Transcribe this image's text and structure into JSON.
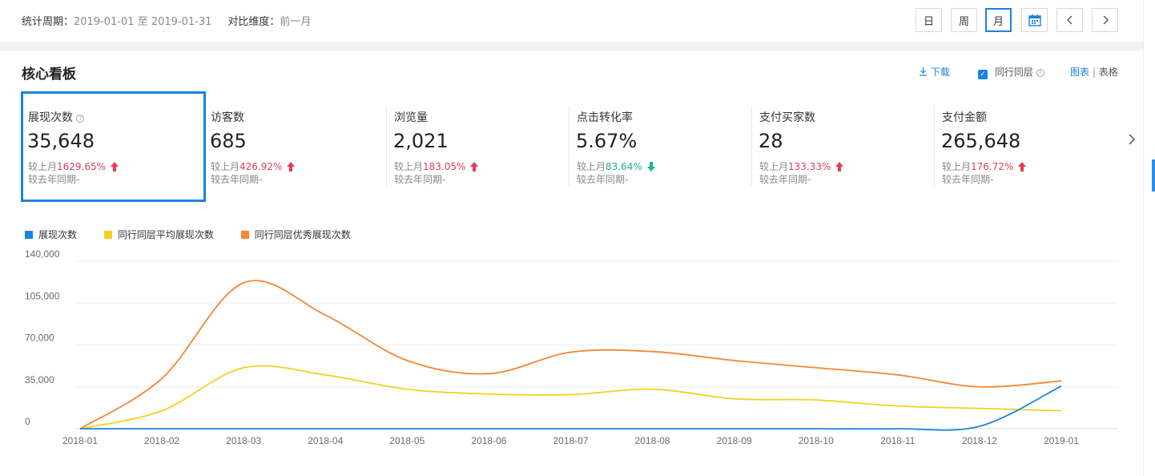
{
  "header": {
    "period_label": "统计周期：",
    "period_value": "2019-01-01 至 2019-01-31",
    "compare_label": "对比维度：",
    "compare_value": "前一月",
    "buttons": [
      "日",
      "周",
      "月"
    ],
    "active_button": "月",
    "icons": [
      "calendar-icon",
      "chevron-left-icon",
      "chevron-right-icon"
    ]
  },
  "panel": {
    "title": "核心看板",
    "download": "下载",
    "peer_label": "同行同层",
    "view_chart": "图表",
    "view_divider": "|",
    "view_table": "表格"
  },
  "metrics": [
    {
      "label": "展现次数",
      "value": "35,648",
      "cmp_prefix": "较上月",
      "cmp_value": "1629.65%",
      "trend": "up",
      "yoy": "较去年同期-",
      "selected": true
    },
    {
      "label": "访客数",
      "value": "685",
      "cmp_prefix": "较上月",
      "cmp_value": "426.92%",
      "trend": "up",
      "yoy": "较去年同期-"
    },
    {
      "label": "浏览量",
      "value": "2,021",
      "cmp_prefix": "较上月",
      "cmp_value": "183.05%",
      "trend": "up",
      "yoy": "较去年同期-"
    },
    {
      "label": "点击转化率",
      "value": "5.67%",
      "cmp_prefix": "较上月",
      "cmp_value": "83.64%",
      "trend": "down",
      "yoy": "较去年同期-"
    },
    {
      "label": "支付买家数",
      "value": "28",
      "cmp_prefix": "较上月",
      "cmp_value": "133.33%",
      "trend": "up",
      "yoy": "较去年同期-"
    },
    {
      "label": "支付金额",
      "value": "265,648",
      "cmp_prefix": "较上月",
      "cmp_value": "176.72%",
      "trend": "up",
      "yoy": "较去年同期-"
    }
  ],
  "colors": {
    "accent": "#1a83e0",
    "up": "#e63c54",
    "down": "#1ab394",
    "series_blue": "#1a83e0",
    "series_yellow": "#f5d020",
    "series_orange": "#f58634"
  },
  "chart_data": {
    "type": "line",
    "x": [
      "2018-01",
      "2018-02",
      "2018-03",
      "2018-04",
      "2018-05",
      "2018-06",
      "2018-07",
      "2018-08",
      "2018-09",
      "2018-10",
      "2018-11",
      "2018-12",
      "2019-01"
    ],
    "ylim": [
      0,
      140000
    ],
    "yticks": [
      0,
      35000,
      70000,
      105000,
      140000
    ],
    "ytick_labels": [
      "0",
      "35,000",
      "70,000",
      "105,000",
      "140,000"
    ],
    "grid": true,
    "legend_position": "top-left",
    "series": [
      {
        "name": "展现次数",
        "color": "#1a83e0",
        "values": [
          0,
          0,
          0,
          0,
          0,
          0,
          0,
          0,
          0,
          0,
          0,
          2000,
          35648
        ]
      },
      {
        "name": "同行同层平均展现次数",
        "color": "#f5d020",
        "values": [
          0,
          15000,
          51000,
          45000,
          33000,
          29000,
          28500,
          33000,
          25000,
          24000,
          19000,
          17000,
          15000
        ]
      },
      {
        "name": "同行同层优秀展现次数",
        "color": "#f58634",
        "values": [
          0,
          42000,
          122000,
          95000,
          57000,
          46000,
          64000,
          64500,
          57000,
          51000,
          45000,
          35000,
          40000
        ]
      }
    ]
  }
}
